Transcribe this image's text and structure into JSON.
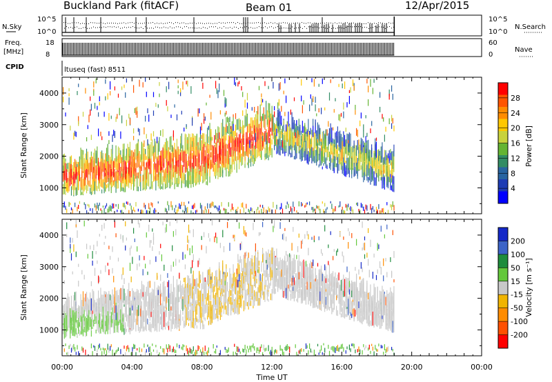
{
  "header": {
    "station": "Buckland Park (fitACF)",
    "beam": "Beam 01",
    "date": "12/Apr/2015"
  },
  "control_panels": {
    "nsky_label": "N.Sky",
    "nsky_ticks": [
      "10^5",
      "10^0"
    ],
    "nsearch_label": "N.Search",
    "nsearch_ticks": [
      "10^5",
      "10^0"
    ],
    "freq_label_top": "Freq.",
    "freq_label_bottom": "[MHz]",
    "freq_ticks": [
      "18",
      "8"
    ],
    "nave_label": "Nave",
    "nave_ticks": [
      "60",
      "0"
    ],
    "cpid_label": "CPID",
    "cpid_value": "ltuseq (fast) 8511"
  },
  "chart_data": [
    {
      "type": "heatmap",
      "name": "power",
      "ylabel": "Slant Range [km]",
      "xlabel": "",
      "x_range_hours": [
        0,
        24
      ],
      "ylim": [
        180,
        4500
      ],
      "y_ticks": [
        "1000",
        "2000",
        "3000",
        "4000"
      ],
      "colorbar_label": "Power [dB]",
      "colorbar_ticks": [
        "28",
        "24",
        "20",
        "16",
        "12",
        "8",
        "4"
      ],
      "colorbar_colors": [
        "#ff0000",
        "#ff5500",
        "#ff8c00",
        "#ffc800",
        "#c8d23c",
        "#64b432",
        "#328c64",
        "#2864a0",
        "#1e3cb4",
        "#0000ff"
      ],
      "data_end_hour": 19.0
    },
    {
      "type": "heatmap",
      "name": "velocity",
      "ylabel": "Slant Range [km]",
      "xlabel": "Time UT",
      "x_range_hours": [
        0,
        24
      ],
      "x_ticks": [
        "00:00",
        "04:00",
        "08:00",
        "12:00",
        "16:00",
        "20:00",
        "00:00"
      ],
      "ylim": [
        180,
        4500
      ],
      "y_ticks": [
        "1000",
        "2000",
        "3000",
        "4000"
      ],
      "colorbar_label": "Velocity [m s⁻¹]",
      "colorbar_ticks": [
        "200",
        "100",
        "50",
        "15",
        "-15",
        "-50",
        "-100",
        "-200"
      ],
      "colorbar_colors": [
        "#1428c8",
        "#3c64c8",
        "#1e8c3c",
        "#64c83c",
        "#c8c8c8",
        "#f0b400",
        "#ff8c00",
        "#ff5000",
        "#ff0000"
      ],
      "data_end_hour": 19.0
    }
  ]
}
